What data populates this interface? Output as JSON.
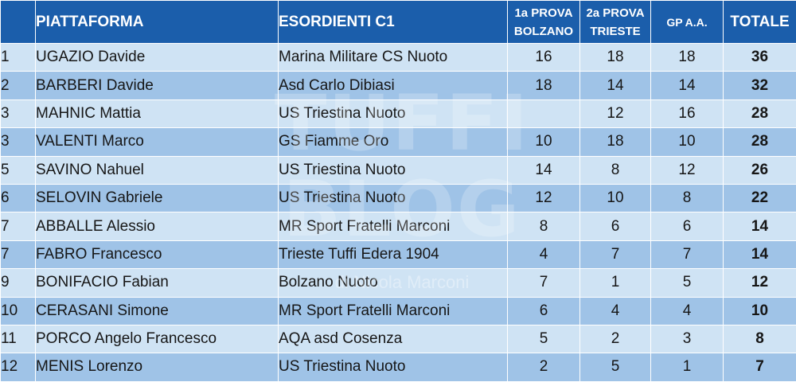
{
  "header": {
    "platform": "PIATTAFORMA",
    "category": "ESORDIENTI C1",
    "prova1_line1": "1a PROVA",
    "prova1_line2": "BOLZANO",
    "prova2_line1": "2a PROVA",
    "prova2_line2": "TRIESTE",
    "gp": "GP A.A.",
    "total": "TOTALE"
  },
  "watermark": {
    "word1": "TUFFI",
    "word2": "BLOG",
    "credit": "di Nicola Marconi"
  },
  "rows": [
    {
      "pos": "1",
      "name": "UGAZIO Davide",
      "club": "Marina Militare CS Nuoto",
      "p1": "16",
      "p2": "18",
      "gp": "18",
      "total": "36"
    },
    {
      "pos": "2",
      "name": "BARBERI Davide",
      "club": "Asd Carlo Dibiasi",
      "p1": "18",
      "p2": "14",
      "gp": "14",
      "total": "32"
    },
    {
      "pos": "3",
      "name": "MAHNIC Mattia",
      "club": "US Triestina Nuoto",
      "p1": "",
      "p2": "12",
      "gp": "16",
      "total": "28"
    },
    {
      "pos": "3",
      "name": "VALENTI Marco",
      "club": "GS Fiamme Oro",
      "p1": "10",
      "p2": "18",
      "gp": "10",
      "total": "28"
    },
    {
      "pos": "5",
      "name": "SAVINO Nahuel",
      "club": "US Triestina Nuoto",
      "p1": "14",
      "p2": "8",
      "gp": "12",
      "total": "26"
    },
    {
      "pos": "6",
      "name": "SELOVIN Gabriele",
      "club": "US Triestina Nuoto",
      "p1": "12",
      "p2": "10",
      "gp": "8",
      "total": "22"
    },
    {
      "pos": "7",
      "name": "ABBALLE Alessio",
      "club": "MR Sport Fratelli Marconi",
      "p1": "8",
      "p2": "6",
      "gp": "6",
      "total": "14"
    },
    {
      "pos": "7",
      "name": "FABRO Francesco",
      "club": "Trieste Tuffi Edera 1904",
      "p1": "4",
      "p2": "7",
      "gp": "7",
      "total": "14"
    },
    {
      "pos": "9",
      "name": "BONIFACIO Fabian",
      "club": "Bolzano Nuoto",
      "p1": "7",
      "p2": "1",
      "gp": "5",
      "total": "12"
    },
    {
      "pos": "10",
      "name": "CERASANI Simone",
      "club": "MR Sport Fratelli Marconi",
      "p1": "6",
      "p2": "4",
      "gp": "4",
      "total": "10"
    },
    {
      "pos": "11",
      "name": "PORCO Angelo Francesco",
      "club": "AQA asd Cosenza",
      "p1": "5",
      "p2": "2",
      "gp": "3",
      "total": "8"
    },
    {
      "pos": "12",
      "name": "MENIS Lorenzo",
      "club": "US Triestina Nuoto",
      "p1": "2",
      "p2": "5",
      "gp": "1",
      "total": "7"
    }
  ]
}
